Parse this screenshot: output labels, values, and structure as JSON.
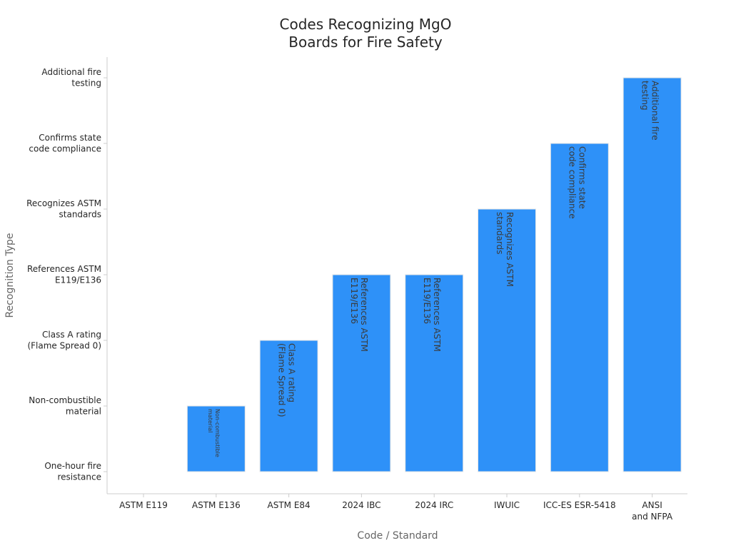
{
  "chart_data": {
    "type": "bar",
    "title": [
      "Codes Recognizing MgO",
      "Boards for Fire Safety"
    ],
    "xlabel": "Code / Standard",
    "ylabel": "Recognition Type",
    "categories": [
      [
        "ASTM E119"
      ],
      [
        "ASTM E136"
      ],
      [
        "ASTM E84"
      ],
      [
        "2024 IBC"
      ],
      [
        "2024 IRC"
      ],
      [
        "IWUIC"
      ],
      [
        "ICC-ES ESR-5418"
      ],
      [
        "ANSI",
        "and NFPA"
      ]
    ],
    "y_levels": [
      [
        "One-hour fire",
        "resistance"
      ],
      [
        "Non-combustible",
        "material"
      ],
      [
        "Class A rating",
        "(Flame Spread 0)"
      ],
      [
        "References ASTM",
        "E119/E136"
      ],
      [
        "Recognizes ASTM",
        "standards"
      ],
      [
        "Confirms state",
        "code compliance"
      ],
      [
        "Additional fire",
        "testing"
      ]
    ],
    "values": [
      0,
      1,
      2,
      3,
      3,
      4,
      5,
      6
    ],
    "bar_labels": [
      [],
      [
        "Non-combustible",
        "material"
      ],
      [
        "Class A rating",
        "(Flame Spread 0)"
      ],
      [
        "References ASTM",
        "E119/E136"
      ],
      [
        "References ASTM",
        "E119/E136"
      ],
      [
        "Recognizes ASTM",
        "standards"
      ],
      [
        "Confirms state",
        "code compliance"
      ],
      [
        "Additional fire",
        "testing"
      ]
    ],
    "ylim": [
      0,
      6
    ],
    "grid": false,
    "legend": "none",
    "bar_color": "#2e91f8",
    "bar_edge_color": "#e6e6e6",
    "axis_color": "#cccccc",
    "text_color": "#262626",
    "label_color": "#666666"
  }
}
